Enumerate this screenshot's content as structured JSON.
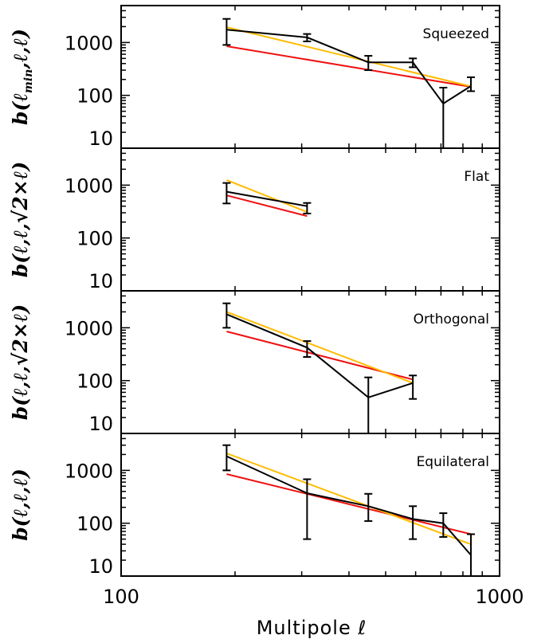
{
  "chart_data": {
    "type": "line",
    "xlabel": "Multipole ℓ",
    "xscale": "log",
    "xlim": [
      100,
      1000
    ],
    "x_ticks": [
      "100",
      "1000"
    ],
    "y_ticks": [
      "10",
      "100",
      "1000"
    ],
    "colors": {
      "data": "#000000",
      "red_model": "#ee1111",
      "yellow_model": "#ffbb00"
    },
    "panels": [
      {
        "label": "Squeezed",
        "ylabel": "b(ℓmin,ℓ,ℓ)",
        "ylabel_main": "b(ℓ",
        "ylabel_sub": "min",
        "ylabel_rest": ",ℓ,ℓ)",
        "yscale": "log",
        "ylim": [
          10,
          5000
        ],
        "data": [
          {
            "x": 190,
            "y": 1750,
            "lo": 900,
            "hi": 2800
          },
          {
            "x": 310,
            "y": 1250,
            "lo": 1050,
            "hi": 1450
          },
          {
            "x": 450,
            "y": 420,
            "lo": 300,
            "hi": 560
          },
          {
            "x": 590,
            "y": 420,
            "lo": 340,
            "hi": 500
          },
          {
            "x": 710,
            "y": 70,
            "lo": 10,
            "hi": 140
          },
          {
            "x": 840,
            "y": 150,
            "lo": 120,
            "hi": 220
          }
        ],
        "red_model": [
          [
            190,
            850
          ],
          [
            840,
            145
          ]
        ],
        "yellow_model": [
          [
            190,
            1950
          ],
          [
            840,
            148
          ]
        ]
      },
      {
        "label": "Flat",
        "ylabel": "b(ℓ,ℓ,√2×ℓ)",
        "ylabel_main": "b(ℓ,ℓ,√2×ℓ)",
        "ylabel_sub": "",
        "ylabel_rest": "",
        "yscale": "log",
        "ylim": [
          10,
          5000
        ],
        "data": [
          {
            "x": 190,
            "y": 750,
            "lo": 450,
            "hi": 1100
          },
          {
            "x": 310,
            "y": 400,
            "lo": 290,
            "hi": 460
          }
        ],
        "red_model": [
          [
            190,
            640
          ],
          [
            310,
            260
          ]
        ],
        "yellow_model": [
          [
            190,
            1250
          ],
          [
            310,
            310
          ]
        ]
      },
      {
        "label": "Orthogonal",
        "ylabel": "b(ℓ,ℓ,√2×ℓ)",
        "ylabel_main": "b(ℓ,ℓ,√2×ℓ)",
        "ylabel_sub": "",
        "ylabel_rest": "",
        "yscale": "log",
        "ylim": [
          10,
          5000
        ],
        "data": [
          {
            "x": 190,
            "y": 1800,
            "lo": 1000,
            "hi": 2900
          },
          {
            "x": 310,
            "y": 420,
            "lo": 280,
            "hi": 560
          },
          {
            "x": 450,
            "y": 48,
            "lo": 10,
            "hi": 115
          },
          {
            "x": 590,
            "y": 90,
            "lo": 45,
            "hi": 125
          }
        ],
        "red_model": [
          [
            190,
            850
          ],
          [
            590,
            105
          ]
        ],
        "yellow_model": [
          [
            190,
            2000
          ],
          [
            590,
            90
          ]
        ]
      },
      {
        "label": "Equilateral",
        "ylabel": "b(ℓ,ℓ,ℓ)",
        "ylabel_main": "b(ℓ,ℓ,ℓ)",
        "ylabel_sub": "",
        "ylabel_rest": "",
        "yscale": "log",
        "ylim": [
          10,
          5000
        ],
        "data": [
          {
            "x": 190,
            "y": 1850,
            "lo": 1000,
            "hi": 3000
          },
          {
            "x": 310,
            "y": 370,
            "lo": 50,
            "hi": 680
          },
          {
            "x": 450,
            "y": 210,
            "lo": 110,
            "hi": 360
          },
          {
            "x": 590,
            "y": 120,
            "lo": 50,
            "hi": 210
          },
          {
            "x": 710,
            "y": 100,
            "lo": 55,
            "hi": 155
          },
          {
            "x": 840,
            "y": 25,
            "lo": 10,
            "hi": 62
          }
        ],
        "red_model": [
          [
            190,
            850
          ],
          [
            840,
            62
          ]
        ],
        "yellow_model": [
          [
            190,
            2100
          ],
          [
            840,
            40
          ]
        ]
      }
    ]
  }
}
